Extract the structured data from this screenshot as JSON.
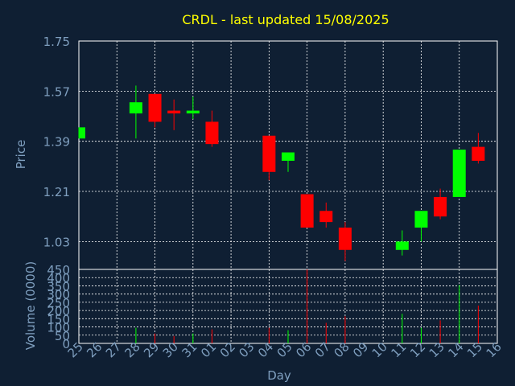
{
  "chart_data": {
    "type": "candlestick",
    "title": "CRDL - last updated 15/08/2025",
    "title_color": "#ffff00",
    "background_color": "#0f1f33",
    "up_color": "#00ff00",
    "down_color": "#ff0000",
    "grid": true,
    "price_panel": {
      "ylabel": "Price",
      "ylim": [
        0.93,
        1.75
      ],
      "yticks": [
        "1.75",
        "1.57",
        "1.39",
        "1.21",
        "1.03"
      ],
      "ytick_values": [
        1.75,
        1.57,
        1.39,
        1.21,
        1.03
      ]
    },
    "volume_panel": {
      "ylabel": "Volume (0000)",
      "ylim": [
        0,
        450
      ],
      "yticks": [
        "450",
        "400",
        "350",
        "300",
        "250",
        "200",
        "150",
        "100",
        "50",
        "0"
      ],
      "ytick_values": [
        450,
        400,
        350,
        300,
        250,
        200,
        150,
        100,
        50,
        0
      ]
    },
    "xlabel": "Day",
    "x_labels": [
      "25",
      "26",
      "27",
      "28",
      "29",
      "30",
      "31",
      "01",
      "02",
      "03",
      "04",
      "05",
      "06",
      "07",
      "08",
      "09",
      "10",
      "11",
      "12",
      "13",
      "14",
      "15",
      "16"
    ],
    "candles": [
      {
        "day": "25",
        "open": 1.4,
        "close": 1.44,
        "high": 1.44,
        "low": 1.4,
        "volume": 0
      },
      {
        "day": "28",
        "open": 1.49,
        "close": 1.53,
        "high": 1.59,
        "low": 1.4,
        "volume": 95
      },
      {
        "day": "29",
        "open": 1.56,
        "close": 1.46,
        "high": 1.56,
        "low": 1.44,
        "volume": 60
      },
      {
        "day": "30",
        "open": 1.5,
        "close": 1.49,
        "high": 1.54,
        "low": 1.43,
        "volume": 45
      },
      {
        "day": "31",
        "open": 1.49,
        "close": 1.5,
        "high": 1.55,
        "low": 1.47,
        "volume": 60
      },
      {
        "day": "01",
        "open": 1.46,
        "close": 1.38,
        "high": 1.5,
        "low": 1.37,
        "volume": 85
      },
      {
        "day": "04",
        "open": 1.41,
        "close": 1.28,
        "high": 1.41,
        "low": 1.25,
        "volume": 95
      },
      {
        "day": "05",
        "open": 1.32,
        "close": 1.35,
        "high": 1.35,
        "low": 1.28,
        "volume": 80
      },
      {
        "day": "06",
        "open": 1.2,
        "close": 1.08,
        "high": 1.2,
        "low": 1.08,
        "volume": 450
      },
      {
        "day": "07",
        "open": 1.14,
        "close": 1.1,
        "high": 1.17,
        "low": 1.08,
        "volume": 125
      },
      {
        "day": "08",
        "open": 1.08,
        "close": 1.0,
        "high": 1.1,
        "low": 0.96,
        "volume": 165
      },
      {
        "day": "11",
        "open": 1.0,
        "close": 1.03,
        "high": 1.07,
        "low": 0.98,
        "volume": 180
      },
      {
        "day": "12",
        "open": 1.08,
        "close": 1.14,
        "high": 1.14,
        "low": 1.03,
        "volume": 95
      },
      {
        "day": "13",
        "open": 1.19,
        "close": 1.12,
        "high": 1.22,
        "low": 1.11,
        "volume": 140
      },
      {
        "day": "14",
        "open": 1.19,
        "close": 1.36,
        "high": 1.36,
        "low": 1.19,
        "volume": 355
      },
      {
        "day": "15",
        "open": 1.37,
        "close": 1.32,
        "high": 1.42,
        "low": 1.31,
        "volume": 230
      }
    ]
  }
}
